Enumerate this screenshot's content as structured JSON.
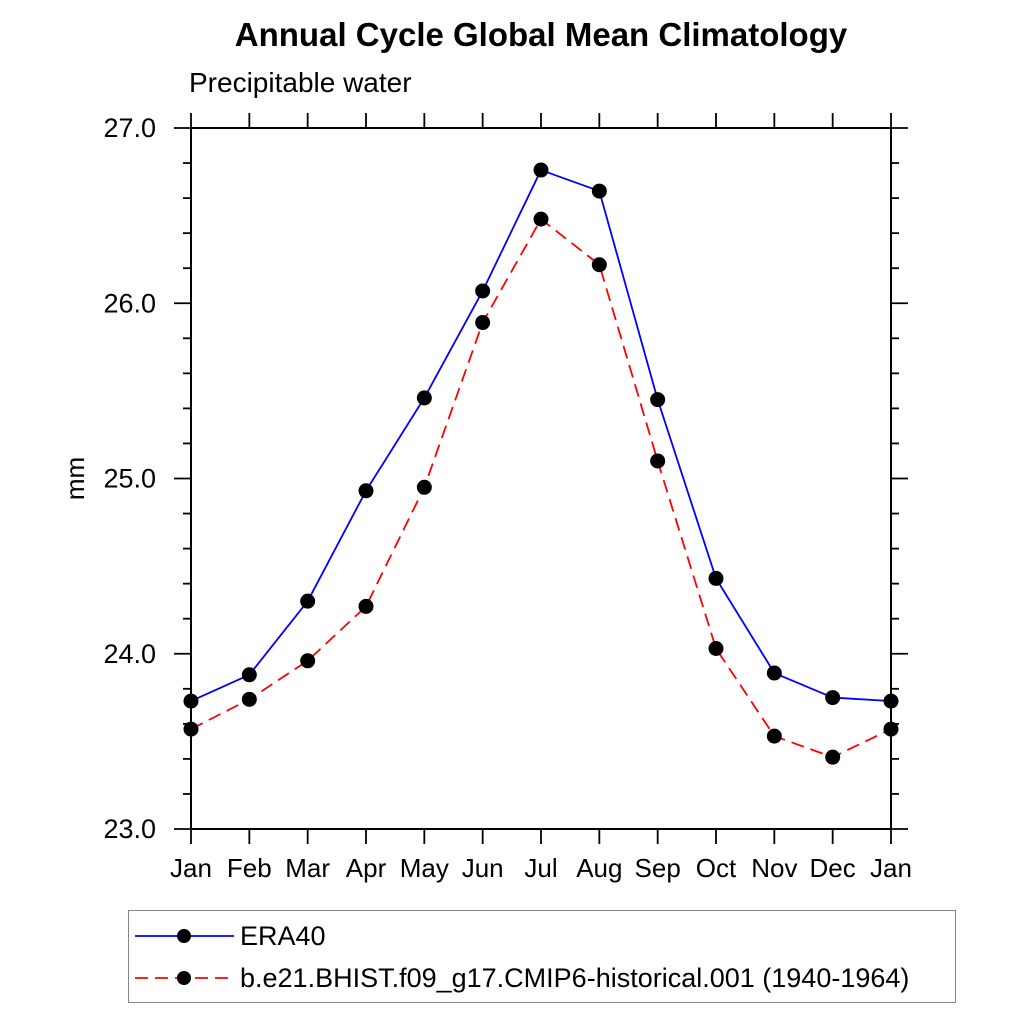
{
  "chart": {
    "title": "Annual Cycle Global Mean Climatology",
    "subtitle": "Precipitable water",
    "ylabel": "mm"
  },
  "chart_data": {
    "type": "line",
    "title": "Annual Cycle Global Mean Climatology",
    "subtitle": "Precipitable water",
    "xlabel": "",
    "ylabel": "mm",
    "categories": [
      "Jan",
      "Feb",
      "Mar",
      "Apr",
      "May",
      "Jun",
      "Jul",
      "Aug",
      "Sep",
      "Oct",
      "Nov",
      "Dec",
      "Jan"
    ],
    "series": [
      {
        "name": "ERA40",
        "color": "#0000ff",
        "line_style": "solid",
        "marker": "filled-circle",
        "marker_color": "#000000",
        "values": [
          23.73,
          23.88,
          24.3,
          24.93,
          25.46,
          26.07,
          26.76,
          26.64,
          25.45,
          24.43,
          23.89,
          23.75,
          23.73
        ]
      },
      {
        "name": "b.e21.BHIST.f09_g17.CMIP6-historical.001 (1940-1964)",
        "color": "#ff0000",
        "line_style": "dashed",
        "marker": "filled-circle",
        "marker_color": "#000000",
        "values": [
          23.57,
          23.74,
          23.96,
          24.27,
          24.95,
          25.89,
          26.48,
          26.22,
          25.1,
          24.03,
          23.53,
          23.41,
          23.57
        ]
      }
    ],
    "ylim": [
      23.0,
      27.0
    ],
    "yticks": [
      23.0,
      24.0,
      25.0,
      26.0,
      27.0
    ],
    "ytick_labels": [
      "23.0",
      "24.0",
      "25.0",
      "26.0",
      "27.0"
    ],
    "y_minor_step": 0.2,
    "grid": false,
    "frame_color": "#000000",
    "legend_position": "bottom-left-box"
  }
}
